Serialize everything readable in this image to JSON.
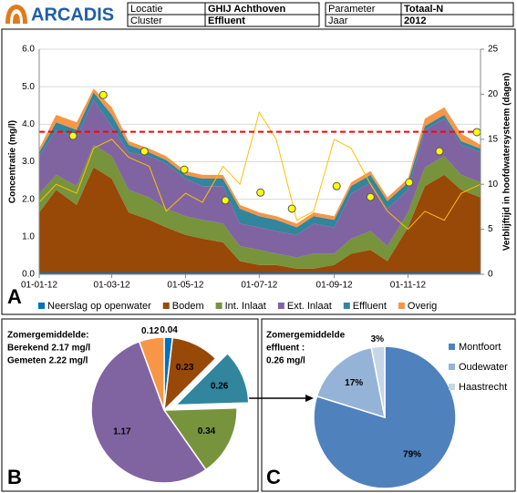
{
  "header": {
    "logo": "ARCADIS",
    "table_left": [
      [
        "Locatie",
        "GHIJ Achthoven"
      ],
      [
        "Cluster",
        "Effluent"
      ]
    ],
    "table_right": [
      [
        "Parameter",
        "Totaal-N"
      ],
      [
        "Jaar",
        "2012"
      ]
    ]
  },
  "chart_data": [
    {
      "type": "stacked-area",
      "panel_label": "A",
      "y_label": "Concentratie (mg/l)",
      "y2_label": "Verblijftijd in hoofdwatersysteem (dagen)",
      "x": [
        "2012-01-01",
        "2012-01-15",
        "2012-02-01",
        "2012-02-15",
        "2012-03-01",
        "2012-03-15",
        "2012-04-01",
        "2012-04-15",
        "2012-05-01",
        "2012-05-15",
        "2012-06-01",
        "2012-06-15",
        "2012-07-01",
        "2012-07-15",
        "2012-08-01",
        "2012-08-15",
        "2012-09-01",
        "2012-09-15",
        "2012-10-01",
        "2012-10-15",
        "2012-11-01",
        "2012-11-15",
        "2012-12-01",
        "2012-12-15",
        "2012-12-31"
      ],
      "xlim": [
        "2012-01-01",
        "2012-12-31"
      ],
      "xticks": [
        {
          "value": "2012-01-01",
          "label": "01-01-12"
        },
        {
          "value": "2012-03-01",
          "label": "01-03-12"
        },
        {
          "value": "2012-05-01",
          "label": "01-05-12"
        },
        {
          "value": "2012-07-01",
          "label": "01-07-12"
        },
        {
          "value": "2012-09-01",
          "label": "01-09-12"
        },
        {
          "value": "2012-11-01",
          "label": "01-11-12"
        }
      ],
      "ylim": [
        0,
        6
      ],
      "yticks": [
        {
          "value": 0,
          "label": "0.0"
        },
        {
          "value": 1,
          "label": "1.0"
        },
        {
          "value": 2,
          "label": "2.0"
        },
        {
          "value": 3,
          "label": "3.0"
        },
        {
          "value": 4,
          "label": "4.0"
        },
        {
          "value": 5,
          "label": "5.0"
        },
        {
          "value": 6,
          "label": "6.0"
        }
      ],
      "y2lim": [
        0,
        25
      ],
      "y2ticks": [
        0,
        5,
        10,
        15,
        20,
        25
      ],
      "grid": true,
      "series": [
        {
          "name": "Neerslag op openwater",
          "color": "#0070c0",
          "values": [
            0.05,
            0.05,
            0.05,
            0.05,
            0.05,
            0.05,
            0.05,
            0.05,
            0.05,
            0.05,
            0.05,
            0.05,
            0.05,
            0.05,
            0.05,
            0.05,
            0.05,
            0.05,
            0.05,
            0.05,
            0.05,
            0.05,
            0.05,
            0.05,
            0.05
          ]
        },
        {
          "name": "Bodem",
          "color": "#984807",
          "values": [
            1.6,
            2.2,
            1.8,
            2.8,
            2.5,
            1.6,
            1.4,
            1.2,
            1.0,
            0.9,
            0.8,
            0.3,
            0.2,
            0.2,
            0.1,
            0.1,
            0.2,
            0.5,
            0.6,
            0.3,
            1.2,
            2.3,
            2.6,
            2.2,
            2.0
          ]
        },
        {
          "name": "Int. Inlaat",
          "color": "#77933c",
          "values": [
            0.5,
            0.4,
            0.5,
            0.6,
            0.6,
            0.6,
            0.6,
            0.5,
            0.5,
            0.5,
            0.5,
            0.4,
            0.4,
            0.3,
            0.3,
            0.4,
            0.3,
            0.4,
            0.5,
            0.4,
            0.4,
            0.5,
            0.5,
            0.4,
            0.4
          ]
        },
        {
          "name": "Ext. Inlaat",
          "color": "#8064a2",
          "values": [
            1.0,
            1.2,
            1.3,
            1.2,
            0.8,
            1.0,
            1.1,
            1.2,
            1.0,
            0.9,
            1.0,
            0.6,
            0.6,
            0.6,
            0.6,
            0.8,
            0.7,
            1.2,
            1.3,
            1.0,
            0.6,
            1.0,
            1.0,
            0.8,
            0.8
          ]
        },
        {
          "name": "Effluent",
          "color": "#31859c",
          "values": [
            0.1,
            0.2,
            0.2,
            0.2,
            0.3,
            0.2,
            0.1,
            0.1,
            0.1,
            0.2,
            0.2,
            0.4,
            0.3,
            0.3,
            0.2,
            0.2,
            0.2,
            0.2,
            0.2,
            0.2,
            0.2,
            0.1,
            0.1,
            0.1,
            0.1
          ]
        },
        {
          "name": "Overig",
          "color": "#f79646",
          "values": [
            0.1,
            0.2,
            0.2,
            0.1,
            0.2,
            0.1,
            0.1,
            0.1,
            0.1,
            0.1,
            0.1,
            0.1,
            0.1,
            0.1,
            0.1,
            0.1,
            0.1,
            0.1,
            0.1,
            0.1,
            0.1,
            0.2,
            0.2,
            0.2,
            0.1
          ]
        }
      ],
      "residence_time": {
        "axis": "y2",
        "color": "#ffc000",
        "values": [
          8,
          10,
          9,
          14,
          15,
          13,
          12,
          7,
          9,
          8,
          12,
          10,
          18,
          15,
          6,
          7,
          15,
          14,
          10,
          7,
          5,
          7,
          6,
          9,
          10
        ]
      },
      "measured": {
        "color": "#ffff00",
        "x": [
          "2012-01-29",
          "2012-02-23",
          "2012-03-28",
          "2012-04-30",
          "2012-06-03",
          "2012-07-02",
          "2012-07-28",
          "2012-09-03",
          "2012-10-01",
          "2012-11-02",
          "2012-11-27",
          "2012-12-28"
        ],
        "values": [
          3.69,
          4.78,
          3.28,
          2.79,
          1.97,
          2.18,
          1.75,
          2.35,
          2.06,
          2.45,
          3.28,
          3.79
        ]
      },
      "reference_line": {
        "value": 3.8,
        "color": "#ff0000"
      }
    },
    {
      "type": "pie",
      "panel_label": "B",
      "annotation": [
        "Zomergemiddelde:",
        "Berekend 2.17 mg/l",
        "Gemeten 2.22 mg/l"
      ],
      "values": [
        0.04,
        0.23,
        0.26,
        0.34,
        1.17,
        0.12
      ],
      "colors": [
        "#0070c0",
        "#984807",
        "#31859c",
        "#77933c",
        "#8064a2",
        "#f79646"
      ],
      "explode": [
        false,
        false,
        true,
        false,
        false,
        false
      ]
    },
    {
      "type": "pie",
      "panel_label": "C",
      "annotation": [
        "Zomergemiddelde",
        "effluent :",
        "0.26 mg/l"
      ],
      "categories": [
        "Montfoort",
        "Oudewater",
        "Haastrecht"
      ],
      "values": [
        79,
        17,
        3
      ],
      "value_labels": [
        "79%",
        "17%",
        "3%"
      ],
      "colors": [
        "#4f81bd",
        "#95b3d7",
        "#c6d5e8"
      ],
      "legend": "right"
    }
  ]
}
